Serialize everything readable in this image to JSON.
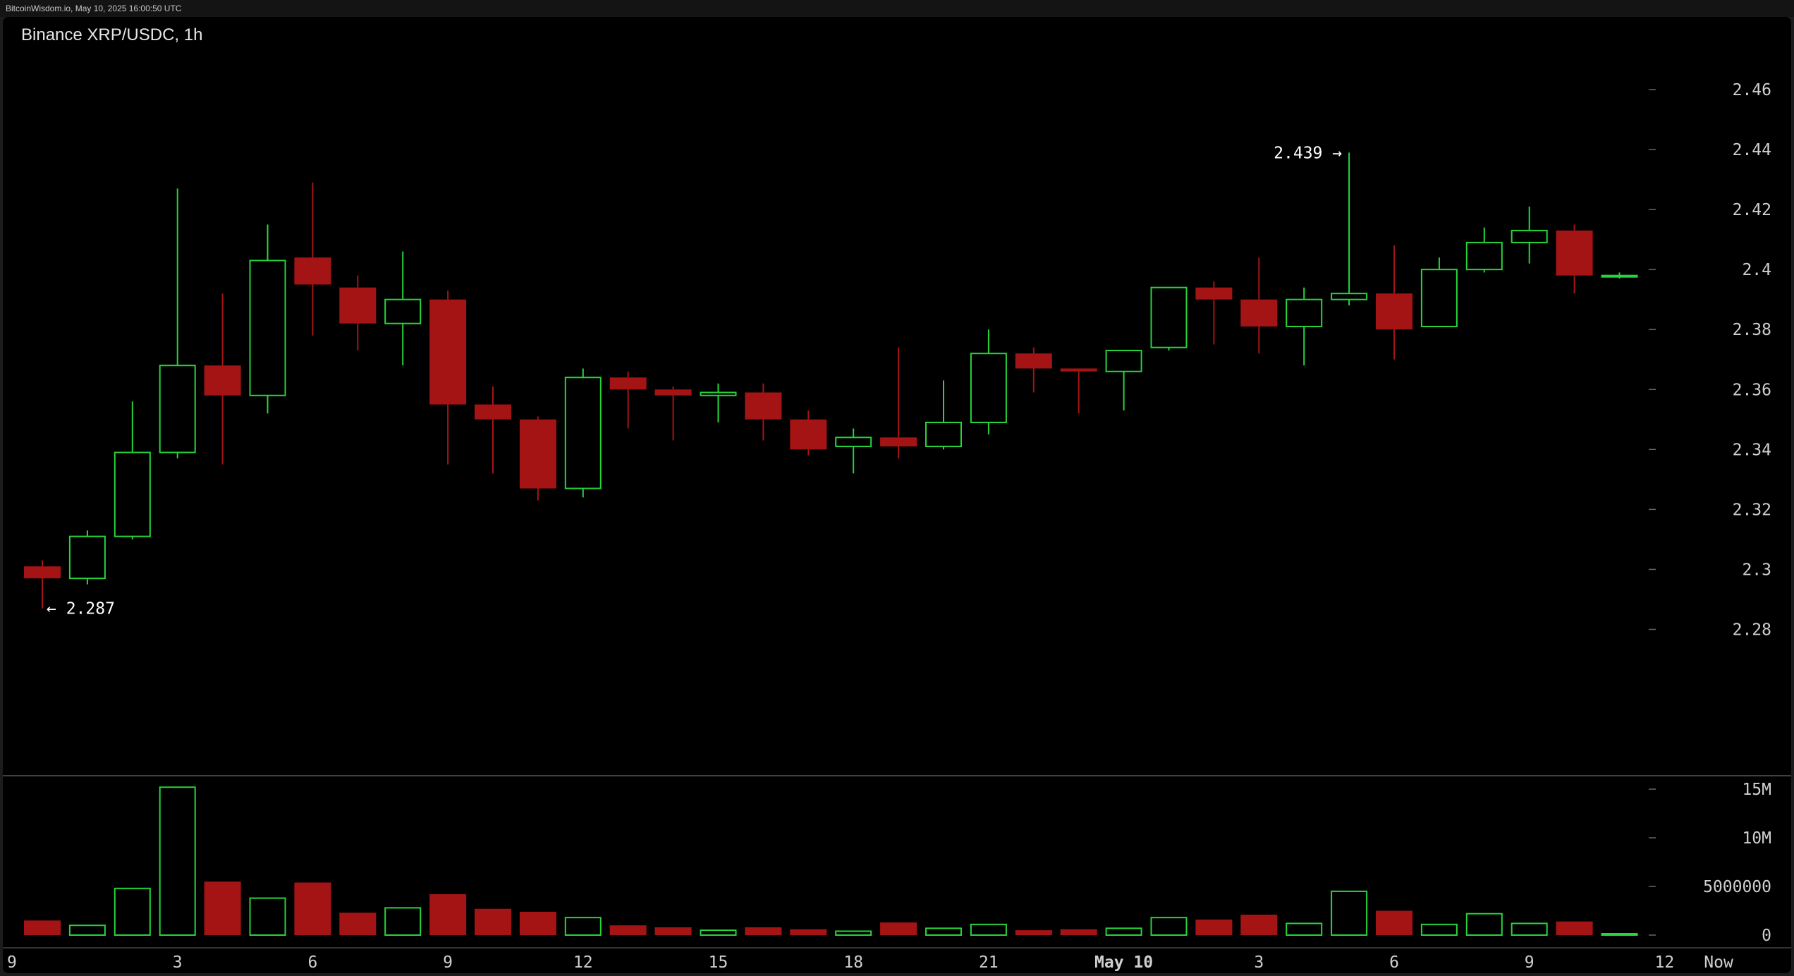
{
  "header": {
    "site_stamp": "BitcoinWisdom.io, May 10, 2025 16:00:50 UTC"
  },
  "chart_data": {
    "type": "candlestick",
    "title": "Binance XRP/USDC, 1h",
    "colors": {
      "up": "#27d43a",
      "down": "#a51414",
      "background": "#000000"
    },
    "price_axis": {
      "ylim": [
        2.262,
        2.472
      ],
      "ticks": [
        2.46,
        2.44,
        2.42,
        2.4,
        2.38,
        2.36,
        2.34,
        2.32,
        2.3,
        2.28
      ],
      "tick_labels": [
        "2.46",
        "2.44",
        "2.42",
        "2.4",
        "2.38",
        "2.36",
        "2.34",
        "2.32",
        "2.3",
        "2.28"
      ]
    },
    "volume_axis": {
      "ylim": [
        0,
        15800000
      ],
      "ticks": [
        15000000,
        10000000,
        5000000,
        0
      ],
      "tick_labels": [
        "15M",
        "10M",
        "5000000",
        "0"
      ]
    },
    "x_labels": [
      {
        "index": 0,
        "label": "9"
      },
      {
        "index": 3,
        "label": "3"
      },
      {
        "index": 6,
        "label": "6"
      },
      {
        "index": 9,
        "label": "9"
      },
      {
        "index": 12,
        "label": "12"
      },
      {
        "index": 15,
        "label": "15"
      },
      {
        "index": 18,
        "label": "18"
      },
      {
        "index": 21,
        "label": "21"
      },
      {
        "index": 24,
        "label": "May 10",
        "bold": true
      },
      {
        "index": 27,
        "label": "3"
      },
      {
        "index": 30,
        "label": "6"
      },
      {
        "index": 33,
        "label": "9"
      },
      {
        "index": 36,
        "label": "12"
      },
      {
        "index": 37.2,
        "label": "Now"
      }
    ],
    "candles": [
      {
        "o": 2.301,
        "h": 2.303,
        "l": 2.287,
        "c": 2.297,
        "v": 1500000
      },
      {
        "o": 2.297,
        "h": 2.313,
        "l": 2.295,
        "c": 2.311,
        "v": 1000000
      },
      {
        "o": 2.311,
        "h": 2.356,
        "l": 2.31,
        "c": 2.339,
        "v": 4800000
      },
      {
        "o": 2.339,
        "h": 2.427,
        "l": 2.337,
        "c": 2.368,
        "v": 15200000
      },
      {
        "o": 2.368,
        "h": 2.392,
        "l": 2.335,
        "c": 2.358,
        "v": 5500000
      },
      {
        "o": 2.358,
        "h": 2.415,
        "l": 2.352,
        "c": 2.403,
        "v": 3800000
      },
      {
        "o": 2.404,
        "h": 2.429,
        "l": 2.378,
        "c": 2.395,
        "v": 5400000
      },
      {
        "o": 2.394,
        "h": 2.398,
        "l": 2.373,
        "c": 2.382,
        "v": 2300000
      },
      {
        "o": 2.382,
        "h": 2.406,
        "l": 2.368,
        "c": 2.39,
        "v": 2800000
      },
      {
        "o": 2.39,
        "h": 2.393,
        "l": 2.335,
        "c": 2.355,
        "v": 4200000
      },
      {
        "o": 2.355,
        "h": 2.361,
        "l": 2.332,
        "c": 2.35,
        "v": 2700000
      },
      {
        "o": 2.35,
        "h": 2.351,
        "l": 2.323,
        "c": 2.327,
        "v": 2400000
      },
      {
        "o": 2.327,
        "h": 2.367,
        "l": 2.324,
        "c": 2.364,
        "v": 1800000
      },
      {
        "o": 2.364,
        "h": 2.366,
        "l": 2.347,
        "c": 2.36,
        "v": 1000000
      },
      {
        "o": 2.36,
        "h": 2.361,
        "l": 2.343,
        "c": 2.358,
        "v": 800000
      },
      {
        "o": 2.358,
        "h": 2.362,
        "l": 2.349,
        "c": 2.359,
        "v": 500000
      },
      {
        "o": 2.359,
        "h": 2.362,
        "l": 2.343,
        "c": 2.35,
        "v": 800000
      },
      {
        "o": 2.35,
        "h": 2.353,
        "l": 2.338,
        "c": 2.34,
        "v": 600000
      },
      {
        "o": 2.341,
        "h": 2.347,
        "l": 2.332,
        "c": 2.344,
        "v": 400000
      },
      {
        "o": 2.344,
        "h": 2.374,
        "l": 2.337,
        "c": 2.341,
        "v": 1300000
      },
      {
        "o": 2.341,
        "h": 2.363,
        "l": 2.34,
        "c": 2.349,
        "v": 700000
      },
      {
        "o": 2.349,
        "h": 2.38,
        "l": 2.345,
        "c": 2.372,
        "v": 1100000
      },
      {
        "o": 2.372,
        "h": 2.374,
        "l": 2.359,
        "c": 2.367,
        "v": 500000
      },
      {
        "o": 2.367,
        "h": 2.367,
        "l": 2.352,
        "c": 2.366,
        "v": 600000
      },
      {
        "o": 2.366,
        "h": 2.373,
        "l": 2.353,
        "c": 2.373,
        "v": 700000
      },
      {
        "o": 2.374,
        "h": 2.394,
        "l": 2.373,
        "c": 2.394,
        "v": 1800000
      },
      {
        "o": 2.394,
        "h": 2.396,
        "l": 2.375,
        "c": 2.39,
        "v": 1600000
      },
      {
        "o": 2.39,
        "h": 2.404,
        "l": 2.372,
        "c": 2.381,
        "v": 2100000
      },
      {
        "o": 2.381,
        "h": 2.394,
        "l": 2.368,
        "c": 2.39,
        "v": 1200000
      },
      {
        "o": 2.39,
        "h": 2.439,
        "l": 2.388,
        "c": 2.392,
        "v": 4500000
      },
      {
        "o": 2.392,
        "h": 2.408,
        "l": 2.37,
        "c": 2.38,
        "v": 2500000
      },
      {
        "o": 2.381,
        "h": 2.404,
        "l": 2.381,
        "c": 2.4,
        "v": 1100000
      },
      {
        "o": 2.4,
        "h": 2.414,
        "l": 2.399,
        "c": 2.409,
        "v": 2200000
      },
      {
        "o": 2.409,
        "h": 2.421,
        "l": 2.402,
        "c": 2.413,
        "v": 1200000
      },
      {
        "o": 2.413,
        "h": 2.415,
        "l": 2.392,
        "c": 2.398,
        "v": 1400000
      },
      {
        "o": 2.398,
        "h": 2.399,
        "l": 2.397,
        "c": 2.398,
        "v": 100000
      }
    ],
    "annotations": [
      {
        "text": "2.439 →",
        "price": 2.439,
        "index": 29,
        "side": "left"
      },
      {
        "text": "← 2.287",
        "price": 2.287,
        "index": 0,
        "side": "right"
      }
    ],
    "grid": false
  }
}
